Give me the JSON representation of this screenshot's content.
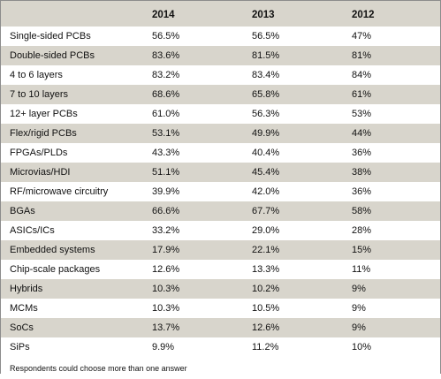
{
  "table": {
    "headers": [
      "",
      "2014",
      "2013",
      "2012"
    ],
    "rows": [
      {
        "label": "Single-sided PCBs",
        "y2014": "56.5%",
        "y2013": "56.5%",
        "y2012": "47%"
      },
      {
        "label": "Double-sided PCBs",
        "y2014": "83.6%",
        "y2013": "81.5%",
        "y2012": "81%"
      },
      {
        "label": "4 to 6 layers",
        "y2014": "83.2%",
        "y2013": "83.4%",
        "y2012": "84%"
      },
      {
        "label": "7 to 10 layers",
        "y2014": "68.6%",
        "y2013": "65.8%",
        "y2012": "61%"
      },
      {
        "label": "12+ layer PCBs",
        "y2014": "61.0%",
        "y2013": "56.3%",
        "y2012": "53%"
      },
      {
        "label": "Flex/rigid PCBs",
        "y2014": "53.1%",
        "y2013": "49.9%",
        "y2012": "44%"
      },
      {
        "label": "FPGAs/PLDs",
        "y2014": "43.3%",
        "y2013": "40.4%",
        "y2012": "36%"
      },
      {
        "label": "Microvias/HDI",
        "y2014": "51.1%",
        "y2013": "45.4%",
        "y2012": "38%"
      },
      {
        "label": "RF/microwave circuitry",
        "y2014": "39.9%",
        "y2013": "42.0%",
        "y2012": "36%"
      },
      {
        "label": "BGAs",
        "y2014": "66.6%",
        "y2013": "67.7%",
        "y2012": "58%"
      },
      {
        "label": "ASICs/ICs",
        "y2014": "33.2%",
        "y2013": "29.0%",
        "y2012": "28%"
      },
      {
        "label": "Embedded systems",
        "y2014": "17.9%",
        "y2013": "22.1%",
        "y2012": "15%"
      },
      {
        "label": "Chip-scale packages",
        "y2014": "12.6%",
        "y2013": "13.3%",
        "y2012": "11%"
      },
      {
        "label": "Hybrids",
        "y2014": "10.3%",
        "y2013": "10.2%",
        "y2012": "9%"
      },
      {
        "label": "MCMs",
        "y2014": "10.3%",
        "y2013": "10.5%",
        "y2012": "9%"
      },
      {
        "label": "SoCs",
        "y2014": "13.7%",
        "y2013": "12.6%",
        "y2012": "9%"
      },
      {
        "label": "SiPs",
        "y2014": "9.9%",
        "y2013": "11.2%",
        "y2012": "10%"
      }
    ],
    "footnote": "Respondents could choose more than one answer"
  },
  "colors": {
    "header_background": "#d8d5cc",
    "stripe_background": "#d8d5cc",
    "row_background": "#ffffff",
    "border": "#8c8c8c",
    "text": "#111111"
  }
}
